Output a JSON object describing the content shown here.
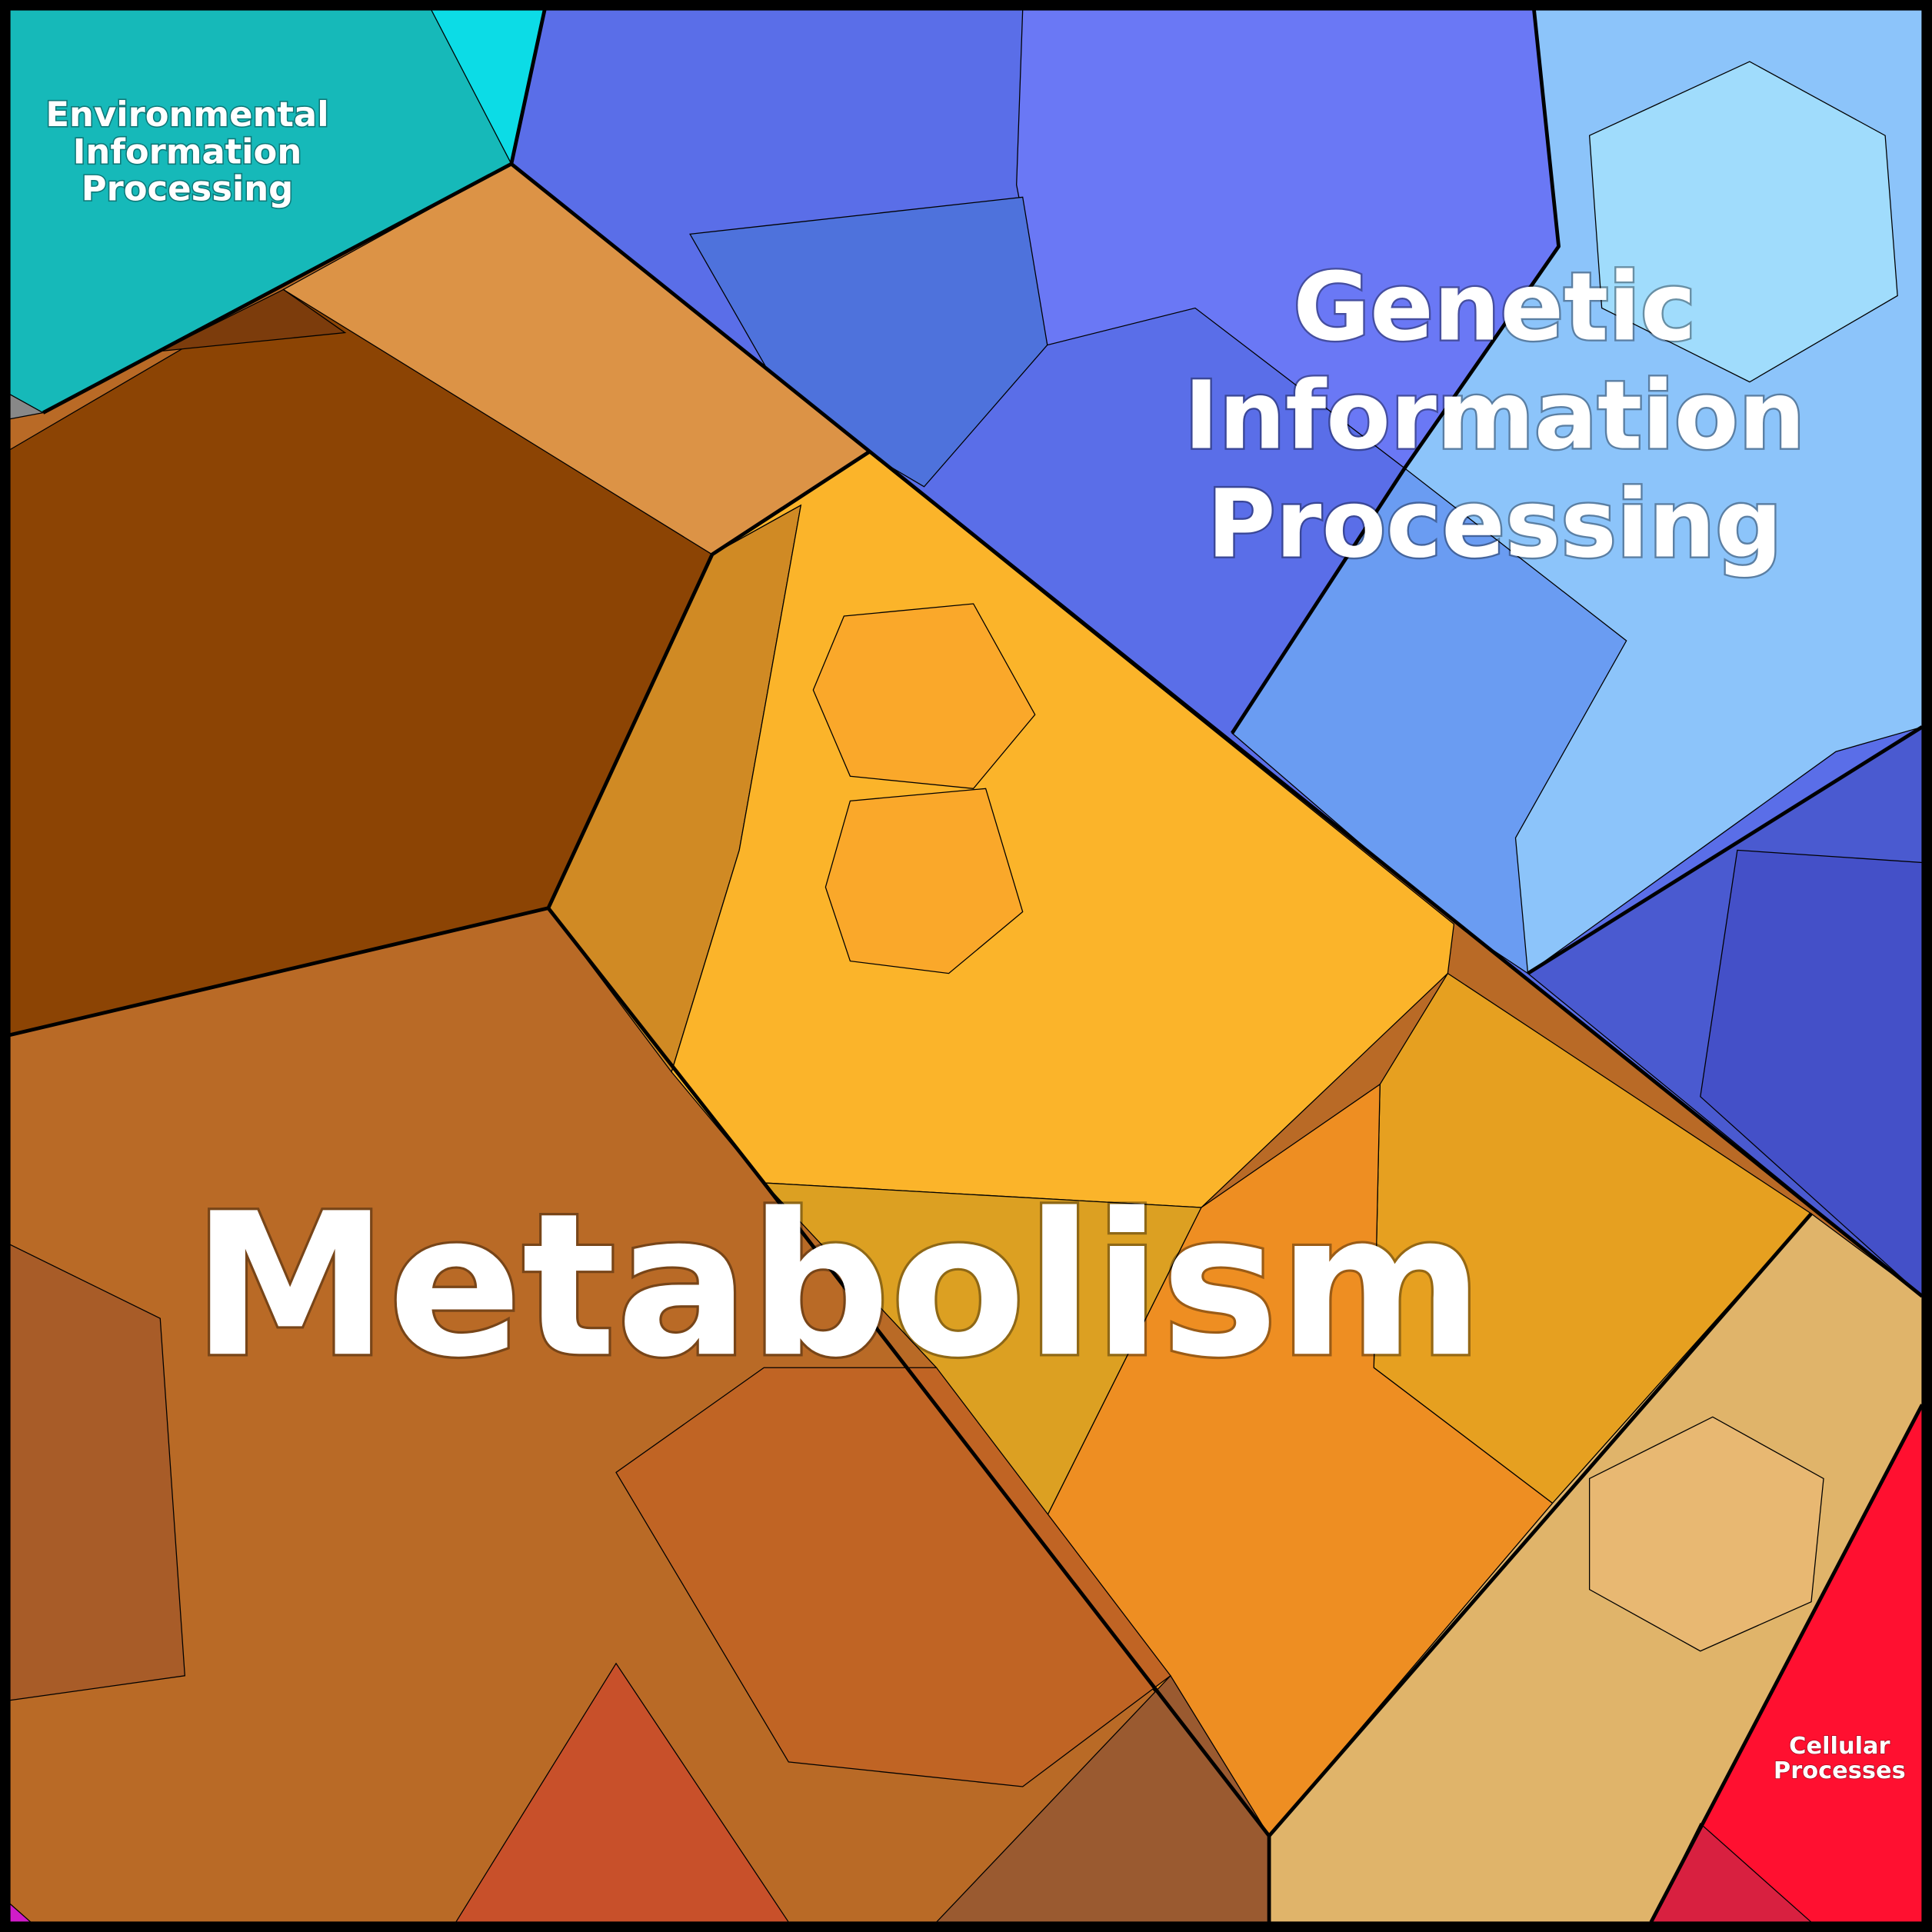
{
  "regions": [
    {
      "label_lines": [
        "Environmental",
        "Information",
        "Processing"
      ]
    },
    {
      "label_lines": [
        "Genetic",
        "Information",
        "Processing"
      ]
    },
    {
      "label_lines": [
        "Metabolism"
      ]
    },
    {
      "label_lines": [
        "Cellular",
        "Processes"
      ]
    }
  ]
}
